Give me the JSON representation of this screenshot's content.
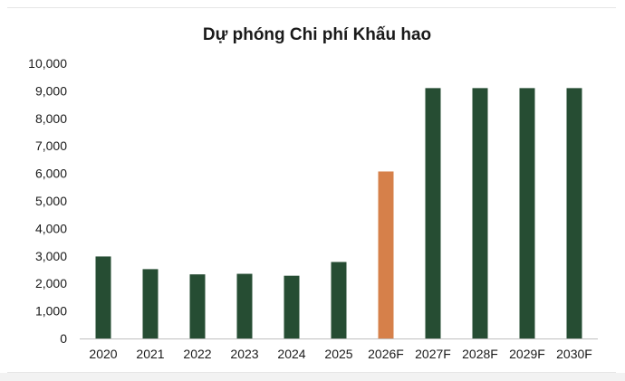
{
  "chart_data": {
    "type": "bar",
    "title": "Dự phóng Chi phí Khấu hao",
    "categories": [
      "2020",
      "2021",
      "2022",
      "2023",
      "2024",
      "2025",
      "2026F",
      "2027F",
      "2028F",
      "2029F",
      "2030F"
    ],
    "values": [
      2980,
      2520,
      2330,
      2350,
      2280,
      2780,
      6070,
      9100,
      9100,
      9100,
      9100
    ],
    "highlight_category": "2026F",
    "ylim": [
      0,
      10000
    ],
    "yticks": [
      "0",
      "1,000",
      "2,000",
      "3,000",
      "4,000",
      "5,000",
      "6,000",
      "7,000",
      "8,000",
      "9,000",
      "10,000"
    ],
    "xlabel": "",
    "ylabel": "",
    "grid": false,
    "legend": "none",
    "colors": {
      "bar": "#264d33",
      "highlight": "#d6804a",
      "axis": "#bfbfbf"
    }
  }
}
